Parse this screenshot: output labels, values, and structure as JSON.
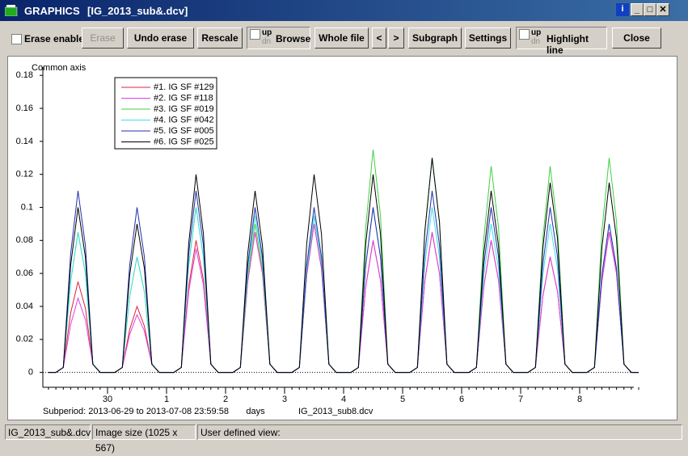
{
  "window": {
    "title": "GRAPHICS",
    "file": "[IG_2013_sub&.dcv]"
  },
  "toolbar": {
    "erase_enable": "Erase enable",
    "erase": "Erase",
    "undo_erase": "Undo erase",
    "rescale": "Rescale",
    "browse": {
      "up": "up",
      "dn": "dn",
      "label": "Browse"
    },
    "whole_file": "Whole file",
    "prev": "<",
    "next": ">",
    "subgraph": "Subgraph",
    "settings": "Settings",
    "highlight": {
      "up": "up",
      "dn": "dn",
      "label": "Highlight line"
    },
    "close": "Close"
  },
  "chart_data": {
    "type": "line",
    "y_label": "Common axis",
    "x_label": "days",
    "subtitle": "Subperiod: 2013-06-29 to 2013-07-08 23:59:58",
    "annotation": "IG_2013_sub8.dcv",
    "legend": "upper left",
    "grid": false,
    "xlim": [
      0,
      10
    ],
    "ylim": [
      -0.009,
      0.185
    ],
    "xticks": [
      {
        "value": 1,
        "label": "30"
      },
      {
        "value": 2,
        "label": "1"
      },
      {
        "value": 3,
        "label": "2"
      },
      {
        "value": 4,
        "label": "3"
      },
      {
        "value": 5,
        "label": "4"
      },
      {
        "value": 6,
        "label": "5"
      },
      {
        "value": 7,
        "label": "6"
      },
      {
        "value": 8,
        "label": "7"
      },
      {
        "value": 9,
        "label": "8"
      }
    ],
    "yticks": [
      0,
      0.02,
      0.04,
      0.06,
      0.08,
      0.1,
      0.12,
      0.14,
      0.16,
      0.18
    ],
    "x": [
      0,
      0.125,
      0.25,
      0.375,
      0.5,
      0.625,
      0.75,
      0.875,
      1,
      1.125,
      1.25,
      1.375,
      1.5,
      1.625,
      1.75,
      1.875,
      2,
      2.125,
      2.25,
      2.375,
      2.5,
      2.625,
      2.75,
      2.875,
      3,
      3.125,
      3.25,
      3.375,
      3.5,
      3.625,
      3.75,
      3.875,
      4,
      4.125,
      4.25,
      4.375,
      4.5,
      4.625,
      4.75,
      4.875,
      5,
      5.125,
      5.25,
      5.375,
      5.5,
      5.625,
      5.75,
      5.875,
      6,
      6.125,
      6.25,
      6.375,
      6.5,
      6.625,
      6.75,
      6.875,
      7,
      7.125,
      7.25,
      7.375,
      7.5,
      7.625,
      7.75,
      7.875,
      8,
      8.125,
      8.25,
      8.375,
      8.5,
      8.625,
      8.75,
      8.875,
      9,
      9.125,
      9.25,
      9.375,
      9.5,
      9.625,
      9.75,
      9.875,
      10
    ],
    "series": [
      {
        "name": "#1. IG SF #129",
        "color": "#e0203a",
        "values": [
          0,
          0,
          0.003,
          0.036,
          0.055,
          0.039,
          0.005,
          0,
          0,
          0,
          0.003,
          0.026,
          0.04,
          0.028,
          0.005,
          0,
          0,
          0,
          0.003,
          0.052,
          0.08,
          0.056,
          0.005,
          0,
          0,
          0,
          0.003,
          0.055,
          0.085,
          0.06,
          0.005,
          0,
          0,
          0,
          0.003,
          0.059,
          0.09,
          0.063,
          0.005,
          0,
          0,
          0,
          0.003,
          0.052,
          0.08,
          0.056,
          0.005,
          0,
          0,
          0,
          0.003,
          0.055,
          0.085,
          0.06,
          0.005,
          0,
          0,
          0,
          0.003,
          0.052,
          0.08,
          0.056,
          0.005,
          0,
          0,
          0,
          0.003,
          0.046,
          0.07,
          0.049,
          0.005,
          0,
          0,
          0,
          0.003,
          0.055,
          0.085,
          0.06,
          0.005,
          0,
          0
        ]
      },
      {
        "name": "#2. IG SF #118",
        "color": "#e040e0",
        "values": [
          0,
          0,
          0.003,
          0.029,
          0.045,
          0.032,
          0.005,
          0,
          0,
          0,
          0.003,
          0.023,
          0.035,
          0.025,
          0.005,
          0,
          0,
          0,
          0.003,
          0.049,
          0.075,
          0.053,
          0.005,
          0,
          0,
          0,
          0.003,
          0.055,
          0.085,
          0.06,
          0.005,
          0,
          0,
          0,
          0.003,
          0.059,
          0.09,
          0.063,
          0.005,
          0,
          0,
          0,
          0.003,
          0.052,
          0.08,
          0.056,
          0.005,
          0,
          0,
          0,
          0.003,
          0.055,
          0.085,
          0.06,
          0.005,
          0,
          0,
          0,
          0.003,
          0.052,
          0.08,
          0.056,
          0.005,
          0,
          0,
          0,
          0.003,
          0.046,
          0.07,
          0.049,
          0.005,
          0,
          0,
          0,
          0.003,
          0.055,
          0.085,
          0.06,
          0.005,
          0,
          0
        ]
      },
      {
        "name": "#3. IG SF #019",
        "color": "#40d040",
        "values": [
          0,
          0,
          0.003,
          0.055,
          0.085,
          0.06,
          0.005,
          0,
          0,
          0,
          0.003,
          0.046,
          0.07,
          0.049,
          0.005,
          0,
          0,
          0,
          0.003,
          0.065,
          0.1,
          0.07,
          0.005,
          0,
          0,
          0,
          0.003,
          0.059,
          0.09,
          0.063,
          0.005,
          0,
          0,
          0,
          0.003,
          0.062,
          0.095,
          0.067,
          0.005,
          0,
          0,
          0,
          0.003,
          0.088,
          0.135,
          0.095,
          0.005,
          0,
          0,
          0,
          0.003,
          0.085,
          0.13,
          0.091,
          0.005,
          0,
          0,
          0,
          0.003,
          0.081,
          0.125,
          0.088,
          0.005,
          0,
          0,
          0,
          0.003,
          0.081,
          0.125,
          0.088,
          0.005,
          0,
          0,
          0,
          0.003,
          0.085,
          0.13,
          0.091,
          0.005,
          0,
          0
        ]
      },
      {
        "name": "#4. IG SF #042",
        "color": "#40e0e0",
        "values": [
          0,
          0,
          0.003,
          0.055,
          0.085,
          0.06,
          0.005,
          0,
          0,
          0,
          0.003,
          0.046,
          0.07,
          0.049,
          0.005,
          0,
          0,
          0,
          0.003,
          0.065,
          0.1,
          0.07,
          0.005,
          0,
          0,
          0,
          0.003,
          0.062,
          0.095,
          0.067,
          0.005,
          0,
          0,
          0,
          0.003,
          0.062,
          0.095,
          0.067,
          0.005,
          0,
          0,
          0,
          0.003,
          0.065,
          0.1,
          0.07,
          0.005,
          0,
          0,
          0,
          0.003,
          0.065,
          0.1,
          0.07,
          0.005,
          0,
          0,
          0,
          0.003,
          0.059,
          0.09,
          0.063,
          0.005,
          0,
          0,
          0,
          0.003,
          0.059,
          0.09,
          0.063,
          0.005,
          0,
          0,
          0,
          0.003,
          0.059,
          0.09,
          0.063,
          0.005,
          0,
          0
        ]
      },
      {
        "name": "#5. IG SF #005",
        "color": "#2030b0",
        "values": [
          0,
          0,
          0.003,
          0.072,
          0.11,
          0.077,
          0.005,
          0,
          0,
          0,
          0.003,
          0.065,
          0.1,
          0.07,
          0.005,
          0,
          0,
          0,
          0.003,
          0.072,
          0.11,
          0.077,
          0.005,
          0,
          0,
          0,
          0.003,
          0.065,
          0.1,
          0.07,
          0.005,
          0,
          0,
          0,
          0.003,
          0.065,
          0.1,
          0.07,
          0.005,
          0,
          0,
          0,
          0.003,
          0.065,
          0.1,
          0.07,
          0.005,
          0,
          0,
          0,
          0.003,
          0.072,
          0.11,
          0.077,
          0.005,
          0,
          0,
          0,
          0.003,
          0.065,
          0.1,
          0.07,
          0.005,
          0,
          0,
          0,
          0.003,
          0.065,
          0.1,
          0.07,
          0.005,
          0,
          0,
          0,
          0.003,
          0.059,
          0.09,
          0.063,
          0.005,
          0,
          0
        ]
      },
      {
        "name": "#6. IG SF #025",
        "color": "#000000",
        "values": [
          0,
          0,
          0.003,
          0.065,
          0.1,
          0.07,
          0.005,
          0,
          0,
          0,
          0.003,
          0.059,
          0.09,
          0.063,
          0.005,
          0,
          0,
          0,
          0.003,
          0.078,
          0.12,
          0.084,
          0.005,
          0,
          0,
          0,
          0.003,
          0.072,
          0.11,
          0.077,
          0.005,
          0,
          0,
          0,
          0.003,
          0.078,
          0.12,
          0.084,
          0.005,
          0,
          0,
          0,
          0.003,
          0.078,
          0.12,
          0.084,
          0.005,
          0,
          0,
          0,
          0.003,
          0.085,
          0.13,
          0.091,
          0.005,
          0,
          0,
          0,
          0.003,
          0.072,
          0.11,
          0.077,
          0.005,
          0,
          0,
          0,
          0.003,
          0.075,
          0.115,
          0.081,
          0.005,
          0,
          0,
          0,
          0.003,
          0.075,
          0.115,
          0.081,
          0.005,
          0,
          0
        ]
      }
    ]
  },
  "status_bar": {
    "file": "IG_2013_sub&.dcv",
    "image_size": "Image size (1025 x 567)",
    "view": "User defined view:"
  }
}
